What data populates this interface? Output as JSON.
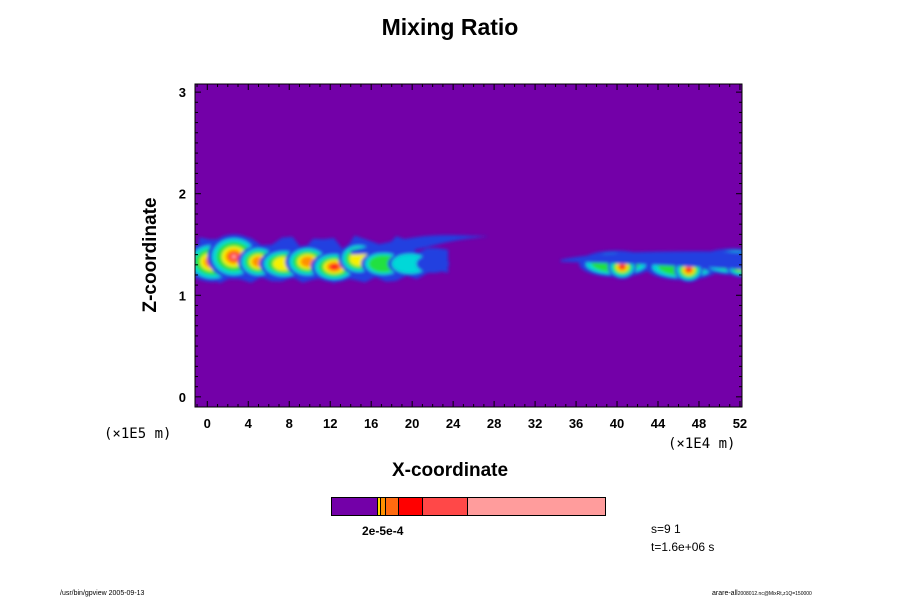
{
  "chart_data": {
    "type": "heatmap",
    "title": "Mixing Ratio",
    "xlabel": "X-coordinate",
    "ylabel": "Z-coordinate",
    "x_unit": "(×1E4 m)",
    "y_unit": "(×1E5 m)",
    "x_ticks": [
      0,
      4,
      8,
      12,
      16,
      20,
      24,
      28,
      32,
      36,
      40,
      44,
      48,
      52
    ],
    "y_ticks": [
      0,
      1,
      2,
      3
    ],
    "xlim": [
      -1.2,
      52.2
    ],
    "ylim": [
      -0.1,
      3.08
    ],
    "background_color": "#7300a8",
    "colorbar": {
      "colors": [
        "#7300a8",
        "#ffd700",
        "#ff9000",
        "#ff6a10",
        "#ff0000",
        "#ff4848",
        "#ff9c9c"
      ],
      "labels_text": "2e-5e-4"
    },
    "features": [
      {
        "type": "plume",
        "x_range": [
          -0.8,
          23.5
        ],
        "z_center": 1.31,
        "z_top": 1.58,
        "z_bottom": 1.15
      },
      {
        "type": "wisp",
        "x_range": [
          14,
          27.5
        ],
        "z_center": 1.5,
        "z_top": 1.6
      },
      {
        "type": "cell",
        "x": 40.5,
        "z": 1.28
      },
      {
        "type": "cell",
        "x": 47,
        "z": 1.25
      },
      {
        "type": "cell",
        "x": 52,
        "z": 1.3
      }
    ]
  },
  "info": {
    "s": "s=9 1",
    "t": "t=1.6e+06 s"
  },
  "footer": {
    "left": "/usr/bin/gpview 2005-09-13",
    "right_main": "arare-all",
    "right_sub": "2008012.nc@MixRt,z1Q=150000"
  }
}
